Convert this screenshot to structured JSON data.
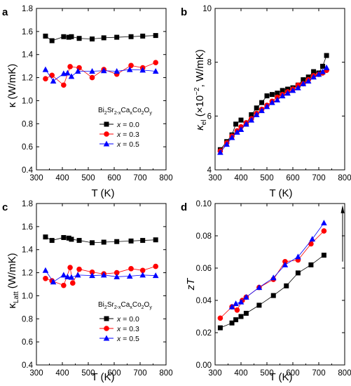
{
  "chart_data": [
    {
      "panel": "a",
      "type": "scatter",
      "xlabel": "T (K)",
      "ylabel": "κ (W/mK)",
      "xlim": [
        300,
        800
      ],
      "ylim": [
        0.4,
        1.8
      ],
      "xticks": [
        300,
        400,
        500,
        600,
        700,
        800
      ],
      "yticks": [
        0.4,
        0.6,
        0.8,
        1.0,
        1.2,
        1.4,
        1.6,
        1.8
      ],
      "xtick_labels": [
        "300",
        "400",
        "500",
        "600",
        "700",
        "800"
      ],
      "ytick_labels": [
        "0.4",
        "0.6",
        "0.8",
        "1.0",
        "1.2",
        "1.4",
        "1.6",
        "1.8"
      ],
      "legend": {
        "title_parts": [
          "Bi",
          "2",
          "Sr",
          "2-x",
          "Ca",
          "x",
          "Co",
          "2",
          "O",
          "y"
        ],
        "placement": "lower-center",
        "entries": [
          {
            "label": "x = 0.0",
            "x_sym": "x",
            "value": " = 0.0"
          },
          {
            "label": "x = 0.3",
            "x_sym": "x",
            "value": " = 0.3"
          },
          {
            "label": "x = 0.5",
            "x_sym": "x",
            "value": " = 0.5"
          }
        ]
      },
      "series": [
        {
          "name": "x = 0.0",
          "color": "#000000",
          "marker": "square",
          "x": [
            335,
            360,
            405,
            425,
            435,
            465,
            515,
            560,
            610,
            665,
            710,
            760
          ],
          "y": [
            1.56,
            1.52,
            1.555,
            1.55,
            1.555,
            1.54,
            1.535,
            1.545,
            1.55,
            1.555,
            1.56,
            1.565
          ]
        },
        {
          "name": "x = 0.3",
          "color": "#ff0000",
          "marker": "circle",
          "x": [
            335,
            360,
            405,
            430,
            465,
            515,
            560,
            610,
            665,
            710,
            760
          ],
          "y": [
            1.19,
            1.22,
            1.135,
            1.295,
            1.285,
            1.2,
            1.27,
            1.23,
            1.305,
            1.285,
            1.33
          ]
        },
        {
          "name": "x = 0.5",
          "color": "#0000ff",
          "marker": "triangle",
          "x": [
            335,
            365,
            405,
            420,
            435,
            460,
            515,
            560,
            610,
            660,
            710,
            760
          ],
          "y": [
            1.27,
            1.17,
            1.235,
            1.24,
            1.21,
            1.255,
            1.255,
            1.26,
            1.255,
            1.27,
            1.265,
            1.255
          ]
        }
      ]
    },
    {
      "panel": "b",
      "type": "scatter",
      "xlabel": "T (K)",
      "ylabel": "κel (×10⁻², W/mK)",
      "xlim": [
        300,
        800
      ],
      "ylim": [
        4,
        10
      ],
      "xticks": [
        300,
        400,
        500,
        600,
        700,
        800
      ],
      "yticks": [
        4,
        6,
        8,
        10
      ],
      "xtick_labels": [
        "300",
        "400",
        "500",
        "600",
        "700",
        "800"
      ],
      "ytick_labels": [
        "4",
        "6",
        "8",
        "10"
      ],
      "series": [
        {
          "name": "x = 0.0",
          "color": "#000000",
          "marker": "square",
          "x": [
            320,
            345,
            365,
            380,
            400,
            420,
            440,
            460,
            480,
            500,
            520,
            540,
            560,
            580,
            600,
            620,
            640,
            660,
            680,
            700,
            715,
            730
          ],
          "y": [
            4.75,
            5.05,
            5.3,
            5.7,
            5.85,
            5.7,
            6.05,
            6.3,
            6.5,
            6.75,
            6.8,
            6.85,
            6.95,
            7.0,
            7.05,
            7.15,
            7.35,
            7.45,
            7.65,
            7.6,
            7.85,
            8.25
          ]
        },
        {
          "name": "x = 0.3",
          "color": "#ff0000",
          "marker": "circle",
          "x": [
            320,
            345,
            365,
            385,
            400,
            420,
            440,
            460,
            480,
            500,
            520,
            540,
            560,
            580,
            600,
            620,
            640,
            660,
            680,
            700,
            715,
            730
          ],
          "y": [
            4.7,
            5.0,
            5.25,
            5.45,
            5.6,
            5.75,
            5.9,
            6.1,
            6.25,
            6.4,
            6.55,
            6.7,
            6.8,
            6.9,
            7.0,
            7.15,
            7.2,
            7.35,
            7.5,
            7.55,
            7.6,
            7.7
          ]
        },
        {
          "name": "x = 0.5",
          "color": "#0000ff",
          "marker": "triangle",
          "x": [
            320,
            345,
            365,
            385,
            400,
            420,
            440,
            460,
            480,
            500,
            520,
            540,
            560,
            580,
            600,
            620,
            640,
            660,
            680,
            700,
            715,
            730
          ],
          "y": [
            4.65,
            4.95,
            5.2,
            5.4,
            5.5,
            5.7,
            5.85,
            6.05,
            6.2,
            6.35,
            6.5,
            6.6,
            6.75,
            6.85,
            6.95,
            7.05,
            7.2,
            7.3,
            7.45,
            7.55,
            7.65,
            7.8
          ]
        }
      ]
    },
    {
      "panel": "c",
      "type": "scatter",
      "xlabel": "T (K)",
      "ylabel": "κLatt (W/mK)",
      "xlim": [
        300,
        800
      ],
      "ylim": [
        0.4,
        1.8
      ],
      "xticks": [
        300,
        400,
        500,
        600,
        700,
        800
      ],
      "yticks": [
        0.4,
        0.6,
        0.8,
        1.0,
        1.2,
        1.4,
        1.6,
        1.8
      ],
      "xtick_labels": [
        "300",
        "400",
        "500",
        "600",
        "700",
        "800"
      ],
      "ytick_labels": [
        "0.4",
        "0.6",
        "0.8",
        "1.0",
        "1.2",
        "1.4",
        "1.6",
        "1.8"
      ],
      "legend": {
        "title_parts": [
          "Bi",
          "2",
          "Sr",
          "2-x",
          "Ca",
          "x",
          "Co",
          "2",
          "O",
          "y"
        ],
        "placement": "lower-center",
        "entries": [
          {
            "label": "x = 0.0",
            "x_sym": "x",
            "value": " = 0.0"
          },
          {
            "label": "x = 0.3",
            "x_sym": "x",
            "value": " = 0.3"
          },
          {
            "label": "x = 0.5",
            "x_sym": "x",
            "value": " = 0.5"
          }
        ]
      },
      "series": [
        {
          "name": "x = 0.0",
          "color": "#000000",
          "marker": "square",
          "x": [
            335,
            360,
            405,
            425,
            435,
            465,
            515,
            560,
            610,
            665,
            710,
            760
          ],
          "y": [
            1.51,
            1.48,
            1.505,
            1.5,
            1.49,
            1.48,
            1.46,
            1.465,
            1.47,
            1.475,
            1.48,
            1.485
          ]
        },
        {
          "name": "x = 0.3",
          "color": "#ff0000",
          "marker": "circle",
          "x": [
            335,
            360,
            405,
            430,
            440,
            465,
            515,
            560,
            610,
            665,
            710,
            760
          ],
          "y": [
            1.15,
            1.13,
            1.09,
            1.245,
            1.11,
            1.23,
            1.205,
            1.19,
            1.2,
            1.235,
            1.22,
            1.255
          ]
        },
        {
          "name": "x = 0.5",
          "color": "#0000ff",
          "marker": "triangle",
          "x": [
            335,
            365,
            405,
            420,
            435,
            460,
            515,
            560,
            610,
            660,
            710,
            760
          ],
          "y": [
            1.22,
            1.12,
            1.18,
            1.165,
            1.16,
            1.18,
            1.175,
            1.18,
            1.165,
            1.17,
            1.18,
            1.175
          ]
        }
      ]
    },
    {
      "panel": "d",
      "type": "line",
      "xlabel": "T (K)",
      "ylabel": "zT",
      "xlim": [
        300,
        800
      ],
      "ylim": [
        0.0,
        0.1
      ],
      "xticks": [
        300,
        400,
        500,
        600,
        700,
        800
      ],
      "yticks": [
        0.0,
        0.02,
        0.04,
        0.06,
        0.08,
        0.1
      ],
      "xtick_labels": [
        "300",
        "400",
        "500",
        "600",
        "700",
        "800"
      ],
      "ytick_labels": [
        "0.00",
        "0.02",
        "0.04",
        "0.06",
        "0.08",
        "0.10"
      ],
      "annotation": "upward arrow at right indicating zT increase with x",
      "series": [
        {
          "name": "x = 0.0",
          "color": "#000000",
          "marker": "square",
          "x": [
            320,
            365,
            380,
            400,
            420,
            470,
            525,
            575,
            620,
            670,
            720
          ],
          "y": [
            0.023,
            0.026,
            0.028,
            0.03,
            0.032,
            0.037,
            0.043,
            0.049,
            0.057,
            0.062,
            0.068
          ]
        },
        {
          "name": "x = 0.3",
          "color": "#ff0000",
          "marker": "circle",
          "x": [
            320,
            365,
            385,
            405,
            420,
            470,
            525,
            570,
            620,
            670,
            720
          ],
          "y": [
            0.029,
            0.036,
            0.034,
            0.04,
            0.042,
            0.048,
            0.053,
            0.064,
            0.065,
            0.075,
            0.083
          ]
        },
        {
          "name": "x = 0.5",
          "color": "#0000ff",
          "marker": "triangle",
          "x": [
            365,
            380,
            400,
            420,
            470,
            525,
            570,
            620,
            675,
            720
          ],
          "y": [
            0.036,
            0.038,
            0.039,
            0.042,
            0.048,
            0.054,
            0.062,
            0.067,
            0.078,
            0.088
          ]
        }
      ]
    }
  ],
  "panels": {
    "a": {
      "letter": "a",
      "ylabel": "κ (W/mK)",
      "xlabel": "T (K)"
    },
    "b": {
      "letter": "b",
      "ylabel_main": "κ",
      "ylabel_sub": "el",
      "ylabel_rest": " (×10",
      "ylabel_exp": "−2",
      "ylabel_tail": ", W/mK)",
      "xlabel": "T (K)"
    },
    "c": {
      "letter": "c",
      "ylabel_main": "κ",
      "ylabel_sub": "Latt",
      "ylabel_tail": " (W/mK)",
      "xlabel": "T (K)"
    },
    "d": {
      "letter": "d",
      "ylabel": "zT",
      "xlabel": "T (K)"
    }
  }
}
